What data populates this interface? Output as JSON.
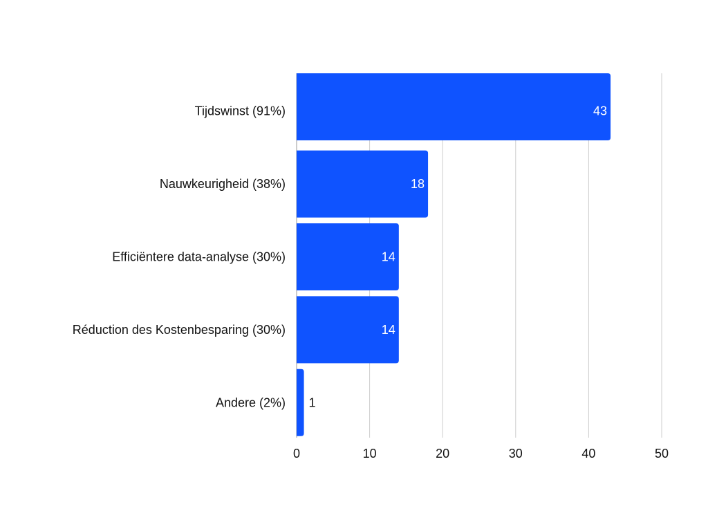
{
  "chart_data": {
    "type": "bar",
    "orientation": "horizontal",
    "categories": [
      "Tijdswinst (91%)",
      "Nauwkeurigheid (38%)",
      "Efficiëntere data-analyse (30%)",
      "Réduction des Kostenbesparing (30%)",
      "Andere (2%)"
    ],
    "values": [
      43,
      18,
      14,
      14,
      1
    ],
    "data_labels": [
      "43",
      "18",
      "14",
      "14",
      "1"
    ],
    "xlim": [
      0,
      50
    ],
    "x_ticks": [
      "0",
      "10",
      "20",
      "30",
      "40",
      "50"
    ],
    "title": "",
    "xlabel": "",
    "ylabel": "",
    "grid": "vertical",
    "bar_color": "#0f53ff",
    "grid_color": "#cccccc"
  }
}
